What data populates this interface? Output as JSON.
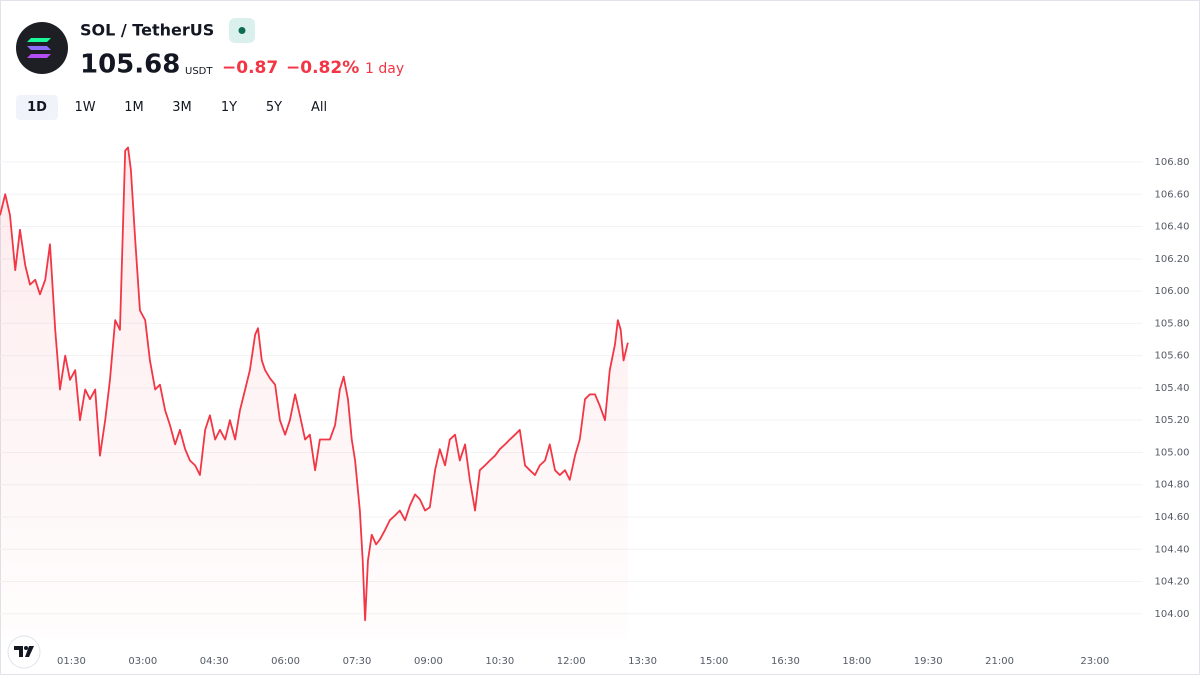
{
  "header": {
    "title": "SOL / TetherUS",
    "price": "105.68",
    "currency": "USDT",
    "change": "−0.87",
    "change_percent": "−0.82%",
    "period": "1 day"
  },
  "ranges": [
    "1D",
    "1W",
    "1M",
    "3M",
    "1Y",
    "5Y",
    "All"
  ],
  "selected_range": "1D",
  "chart_data": {
    "type": "area",
    "series": [
      {
        "name": "SOL / TetherUS",
        "color": "#f23645",
        "x": [
          0,
          0.11,
          0.21,
          0.32,
          0.42,
          0.53,
          0.63,
          0.74,
          0.84,
          0.95,
          1.05,
          1.16,
          1.26,
          1.37,
          1.47,
          1.58,
          1.68,
          1.79,
          1.89,
          2.0,
          2.1,
          2.21,
          2.31,
          2.42,
          2.52,
          2.63,
          2.69,
          2.75,
          2.84,
          2.94,
          3.05,
          3.15,
          3.26,
          3.36,
          3.47,
          3.57,
          3.68,
          3.78,
          3.89,
          3.99,
          4.1,
          4.2,
          4.31,
          4.41,
          4.52,
          4.62,
          4.73,
          4.83,
          4.94,
          5.04,
          5.15,
          5.25,
          5.36,
          5.42,
          5.5,
          5.57,
          5.67,
          5.78,
          5.88,
          5.99,
          6.09,
          6.2,
          6.3,
          6.41,
          6.51,
          6.62,
          6.72,
          6.83,
          6.93,
          7.04,
          7.14,
          7.22,
          7.31,
          7.39,
          7.46,
          7.56,
          7.62,
          7.67,
          7.73,
          7.81,
          7.9,
          7.98,
          8.09,
          8.19,
          8.3,
          8.4,
          8.51,
          8.61,
          8.72,
          8.82,
          8.93,
          9.03,
          9.14,
          9.24,
          9.35,
          9.45,
          9.56,
          9.66,
          9.77,
          9.87,
          9.98,
          10.08,
          10.19,
          10.29,
          10.4,
          10.5,
          10.61,
          10.71,
          10.82,
          10.92,
          11.03,
          11.13,
          11.24,
          11.34,
          11.45,
          11.55,
          11.66,
          11.76,
          11.87,
          11.97,
          12.08,
          12.18,
          12.29,
          12.39,
          12.5,
          12.6,
          12.71,
          12.81,
          12.92,
          12.98,
          13.04,
          13.1,
          13.19
        ],
        "values": [
          106.47,
          106.6,
          106.47,
          106.13,
          106.38,
          106.16,
          106.04,
          106.07,
          105.98,
          106.07,
          106.29,
          105.76,
          105.39,
          105.6,
          105.45,
          105.51,
          105.2,
          105.39,
          105.33,
          105.39,
          104.98,
          105.2,
          105.45,
          105.82,
          105.76,
          106.87,
          106.89,
          106.75,
          106.32,
          105.88,
          105.82,
          105.57,
          105.39,
          105.42,
          105.26,
          105.17,
          105.05,
          105.14,
          105.02,
          104.95,
          104.92,
          104.86,
          105.14,
          105.23,
          105.08,
          105.14,
          105.08,
          105.2,
          105.08,
          105.26,
          105.39,
          105.51,
          105.73,
          105.77,
          105.57,
          105.51,
          105.46,
          105.42,
          105.2,
          105.11,
          105.2,
          105.36,
          105.23,
          105.08,
          105.11,
          104.89,
          105.08,
          105.08,
          105.08,
          105.17,
          105.39,
          105.47,
          105.33,
          105.08,
          104.95,
          104.64,
          104.33,
          103.96,
          104.33,
          104.49,
          104.43,
          104.46,
          104.52,
          104.58,
          104.61,
          104.64,
          104.58,
          104.67,
          104.74,
          104.71,
          104.64,
          104.66,
          104.89,
          105.02,
          104.92,
          105.08,
          105.11,
          104.95,
          105.05,
          104.83,
          104.64,
          104.89,
          104.92,
          104.95,
          104.98,
          105.02,
          105.05,
          105.08,
          105.11,
          105.14,
          104.92,
          104.89,
          104.86,
          104.92,
          104.95,
          105.05,
          104.89,
          104.86,
          104.89,
          104.83,
          104.98,
          105.08,
          105.33,
          105.36,
          105.36,
          105.29,
          105.2,
          105.51,
          105.67,
          105.82,
          105.76,
          105.57,
          105.68
        ]
      }
    ],
    "xlim": [
      0,
      24
    ],
    "xticks": [
      {
        "value": 1.5,
        "label": "01:30"
      },
      {
        "value": 3,
        "label": "03:00"
      },
      {
        "value": 4.5,
        "label": "04:30"
      },
      {
        "value": 6,
        "label": "06:00"
      },
      {
        "value": 7.5,
        "label": "07:30"
      },
      {
        "value": 9,
        "label": "09:00"
      },
      {
        "value": 10.5,
        "label": "10:30"
      },
      {
        "value": 12,
        "label": "12:00"
      },
      {
        "value": 13.5,
        "label": "13:30"
      },
      {
        "value": 15,
        "label": "15:00"
      },
      {
        "value": 16.5,
        "label": "16:30"
      },
      {
        "value": 18,
        "label": "18:00"
      },
      {
        "value": 19.5,
        "label": "19:30"
      },
      {
        "value": 21,
        "label": "21:00"
      },
      {
        "value": 23,
        "label": "23:00"
      }
    ],
    "ylim": [
      103.85,
      106.95
    ],
    "yticks": [
      {
        "value": 104.0,
        "label": "104.00"
      },
      {
        "value": 104.2,
        "label": "104.20"
      },
      {
        "value": 104.4,
        "label": "104.40"
      },
      {
        "value": 104.6,
        "label": "104.60"
      },
      {
        "value": 104.8,
        "label": "104.80"
      },
      {
        "value": 105.0,
        "label": "105.00"
      },
      {
        "value": 105.2,
        "label": "105.20"
      },
      {
        "value": 105.4,
        "label": "105.40"
      },
      {
        "value": 105.6,
        "label": "105.60"
      },
      {
        "value": 105.8,
        "label": "105.80"
      },
      {
        "value": 106.0,
        "label": "106.00"
      },
      {
        "value": 106.2,
        "label": "106.20"
      },
      {
        "value": 106.4,
        "label": "106.40"
      },
      {
        "value": 106.6,
        "label": "106.60"
      },
      {
        "value": 106.8,
        "label": "106.80"
      }
    ],
    "grid": true
  }
}
